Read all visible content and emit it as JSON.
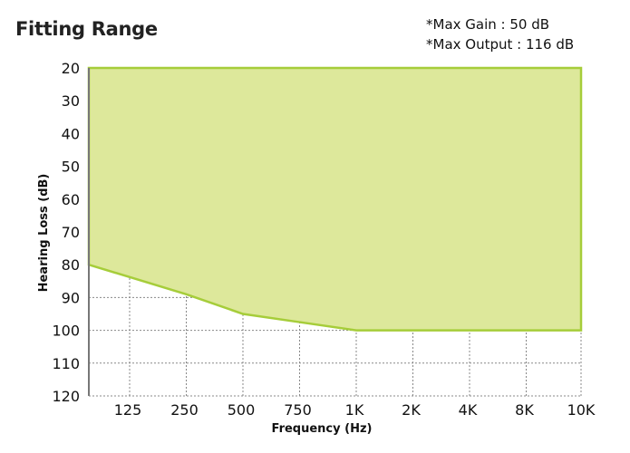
{
  "title": "Fitting Range",
  "notes": [
    "*Max Gain : 50 dB",
    "*Max Output : 116 dB"
  ],
  "colors": {
    "fill": "#dde89b",
    "line": "#a6cd3a",
    "grid": "#888888",
    "axis": "#777777"
  },
  "chart_data": {
    "type": "area",
    "xlabel": "Frequency (Hz)",
    "ylabel": "Hearing Loss (dB)",
    "x_ticks": [
      "125",
      "250",
      "500",
      "750",
      "1K",
      "2K",
      "4K",
      "8K",
      "10K"
    ],
    "y_ticks": [
      20,
      30,
      40,
      50,
      60,
      70,
      80,
      90,
      100,
      110,
      120
    ],
    "ylim": [
      20,
      120
    ],
    "y_inverted": true,
    "grid": true,
    "x_axis_start_index": -0.8,
    "series": [
      {
        "upper_boundary": [
          {
            "x": "start",
            "y": 20
          },
          {
            "x": "10K",
            "y": 20
          }
        ],
        "lower_boundary": [
          {
            "x": "start",
            "y": 80
          },
          {
            "x": "250",
            "y": 89
          },
          {
            "x": "500",
            "y": 95
          },
          {
            "x": "750",
            "y": 97.5
          },
          {
            "x": "1K",
            "y": 100
          },
          {
            "x": "2K",
            "y": 100
          },
          {
            "x": "4K",
            "y": 100
          },
          {
            "x": "8K",
            "y": 100
          },
          {
            "x": "10K",
            "y": 100
          }
        ]
      }
    ]
  }
}
